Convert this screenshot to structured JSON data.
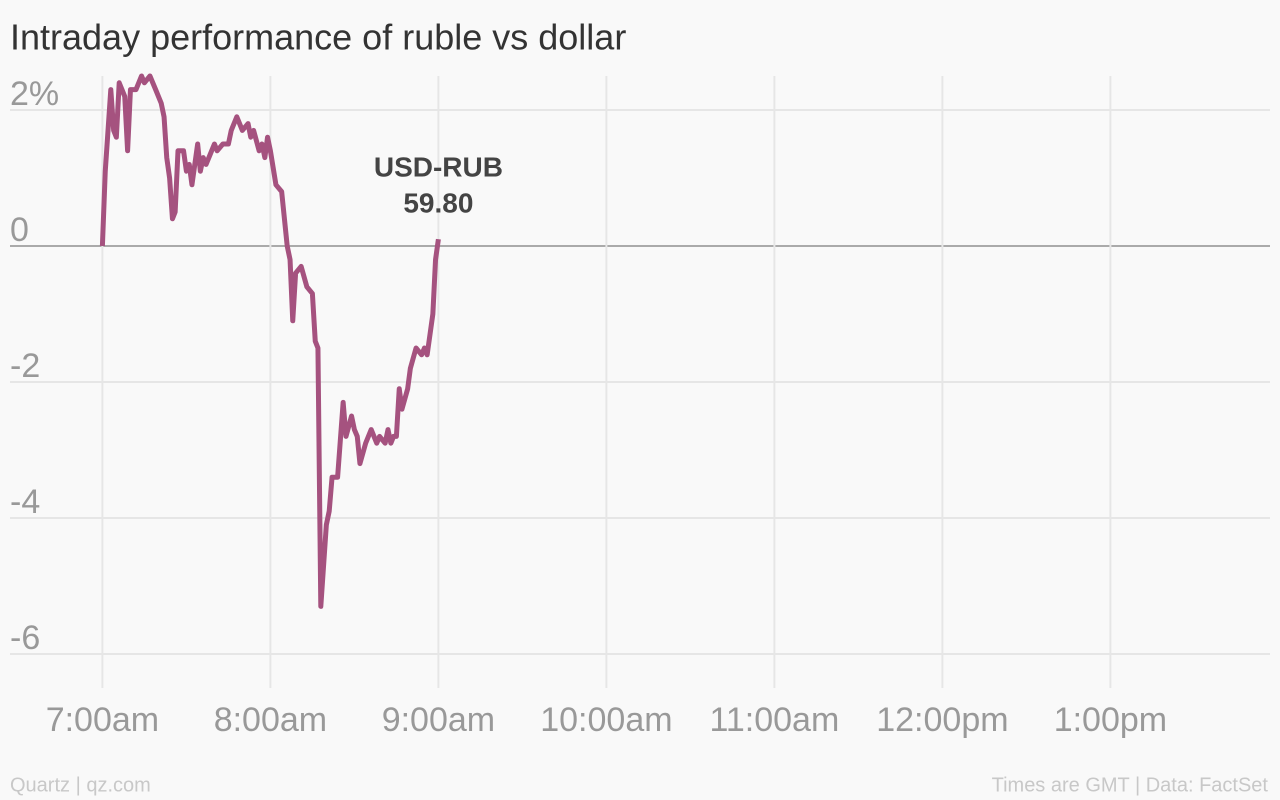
{
  "chart_data": {
    "type": "line",
    "title": "Intraday performance of ruble vs dollar",
    "source": "Quartz | qz.com",
    "note": "Times are GMT | Data: FactSet",
    "annotation": [
      "USD-RUB",
      "59.80"
    ],
    "x": [
      7,
      7.017,
      7.05,
      7.067,
      7.083,
      7.1,
      7.133,
      7.15,
      7.167,
      7.2,
      7.233,
      7.25,
      7.283,
      7.317,
      7.35,
      7.367,
      7.383,
      7.4,
      7.417,
      7.433,
      7.45,
      7.483,
      7.5,
      7.517,
      7.533,
      7.567,
      7.583,
      7.6,
      7.617,
      7.667,
      7.683,
      7.717,
      7.75,
      7.767,
      7.8,
      7.833,
      7.867,
      7.883,
      7.9,
      7.933,
      7.95,
      7.967,
      7.983,
      8,
      8.033,
      8.067,
      8.1,
      8.117,
      8.133,
      8.15,
      8.183,
      8.217,
      8.25,
      8.267,
      8.283,
      8.3,
      8.333,
      8.35,
      8.367,
      8.4,
      8.433,
      8.45,
      8.483,
      8.5,
      8.517,
      8.533,
      8.567,
      8.6,
      8.633,
      8.65,
      8.683,
      8.7,
      8.717,
      8.733,
      8.75,
      8.767,
      8.783,
      8.817,
      8.833,
      8.867,
      8.9,
      8.917,
      8.933,
      8.967,
      8.983,
      9
    ],
    "series": [
      {
        "name": "USD-RUB",
        "color": "#a5527f",
        "values": [
          0,
          1.1,
          2.3,
          1.7,
          1.6,
          2.4,
          2.2,
          1.4,
          2.3,
          2.3,
          2.5,
          2.4,
          2.5,
          2.3,
          2.1,
          1.9,
          1.3,
          1.0,
          0.4,
          0.5,
          1.4,
          1.4,
          1.1,
          1.2,
          0.9,
          1.5,
          1.1,
          1.3,
          1.2,
          1.5,
          1.4,
          1.5,
          1.5,
          1.7,
          1.9,
          1.7,
          1.8,
          1.6,
          1.7,
          1.4,
          1.5,
          1.3,
          1.6,
          1.4,
          0.9,
          0.8,
          0.0,
          -0.2,
          -1.1,
          -0.4,
          -0.3,
          -0.6,
          -0.7,
          -1.4,
          -1.5,
          -5.3,
          -4.1,
          -3.9,
          -3.4,
          -3.4,
          -2.3,
          -2.8,
          -2.5,
          -2.7,
          -2.8,
          -3.2,
          -2.9,
          -2.7,
          -2.9,
          -2.8,
          -2.9,
          -2.7,
          -2.9,
          -2.8,
          -2.8,
          -2.1,
          -2.4,
          -2.1,
          -1.8,
          -1.5,
          -1.6,
          -1.5,
          -1.6,
          -1.0,
          -0.2,
          0.1
        ]
      }
    ],
    "xlim": [
      6.45,
      13.95
    ],
    "xticks": [
      {
        "value": 7,
        "label": "7:00am"
      },
      {
        "value": 8,
        "label": "8:00am"
      },
      {
        "value": 9,
        "label": "9:00am"
      },
      {
        "value": 10,
        "label": "10:00am"
      },
      {
        "value": 11,
        "label": "11:00am"
      },
      {
        "value": 12,
        "label": "12:00pm"
      },
      {
        "value": 13,
        "label": "1:00pm"
      }
    ],
    "ylim": [
      -6.5,
      2.5
    ],
    "yticks": [
      {
        "value": 2,
        "label": "2%"
      },
      0,
      -2,
      -4,
      -6
    ],
    "grid": true
  }
}
